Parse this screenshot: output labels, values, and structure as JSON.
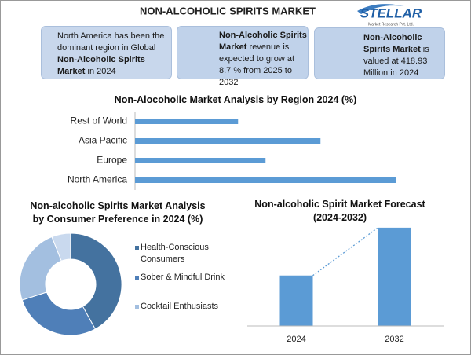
{
  "header": {
    "title": "NON-ALCOHOLIC SPIRITS MARKET"
  },
  "logo": {
    "name": "STELLAR",
    "tagline": "Market Research Pvt. Ltd."
  },
  "boxes": [
    {
      "before": "North America has been the dominant region in Global ",
      "bold": "Non-Alcoholic Spirits Market",
      "after": " in 2024"
    },
    {
      "before": "",
      "bold": "Non-Alcoholic Spirits Market",
      "after": " revenue is expected to grow at 8.7 % from 2025 to 2032"
    },
    {
      "before": "",
      "bold": "Non-Alcoholic Spirits Market",
      "after": " is valued at 418.93 Million in 2024"
    }
  ],
  "chart_data": [
    {
      "type": "bar",
      "horizontal": true,
      "title": "Non-Alocoholic Market Analysis by Region 2024 (%)",
      "categories": [
        "Rest of World",
        "Asia Pacific",
        "Europe",
        "North America"
      ],
      "values": [
        15,
        27,
        19,
        38
      ],
      "color": "#5b9bd5",
      "xlim": [
        0,
        40
      ]
    },
    {
      "type": "pie",
      "donut": true,
      "title": "Non-alcoholic Spirits Market Analysis by Consumer Preference in 2024 (%)",
      "categories": [
        "Health-Conscious Consumers",
        "Sober & Mindful Drink",
        "Cocktail Enthusiasts",
        null
      ],
      "values": [
        42,
        28,
        24,
        6
      ],
      "colors": [
        "#44729f",
        "#4f7fb8",
        "#a3bfe0",
        "#c9d9ee"
      ]
    },
    {
      "type": "bar",
      "horizontal": false,
      "title": "Non-alcoholic Spirit Market Forecast (2024-2032)",
      "categories": [
        "2024",
        "2032"
      ],
      "values": [
        419,
        816
      ],
      "color": "#5b9bd5",
      "ylim": [
        0,
        900
      ]
    }
  ]
}
